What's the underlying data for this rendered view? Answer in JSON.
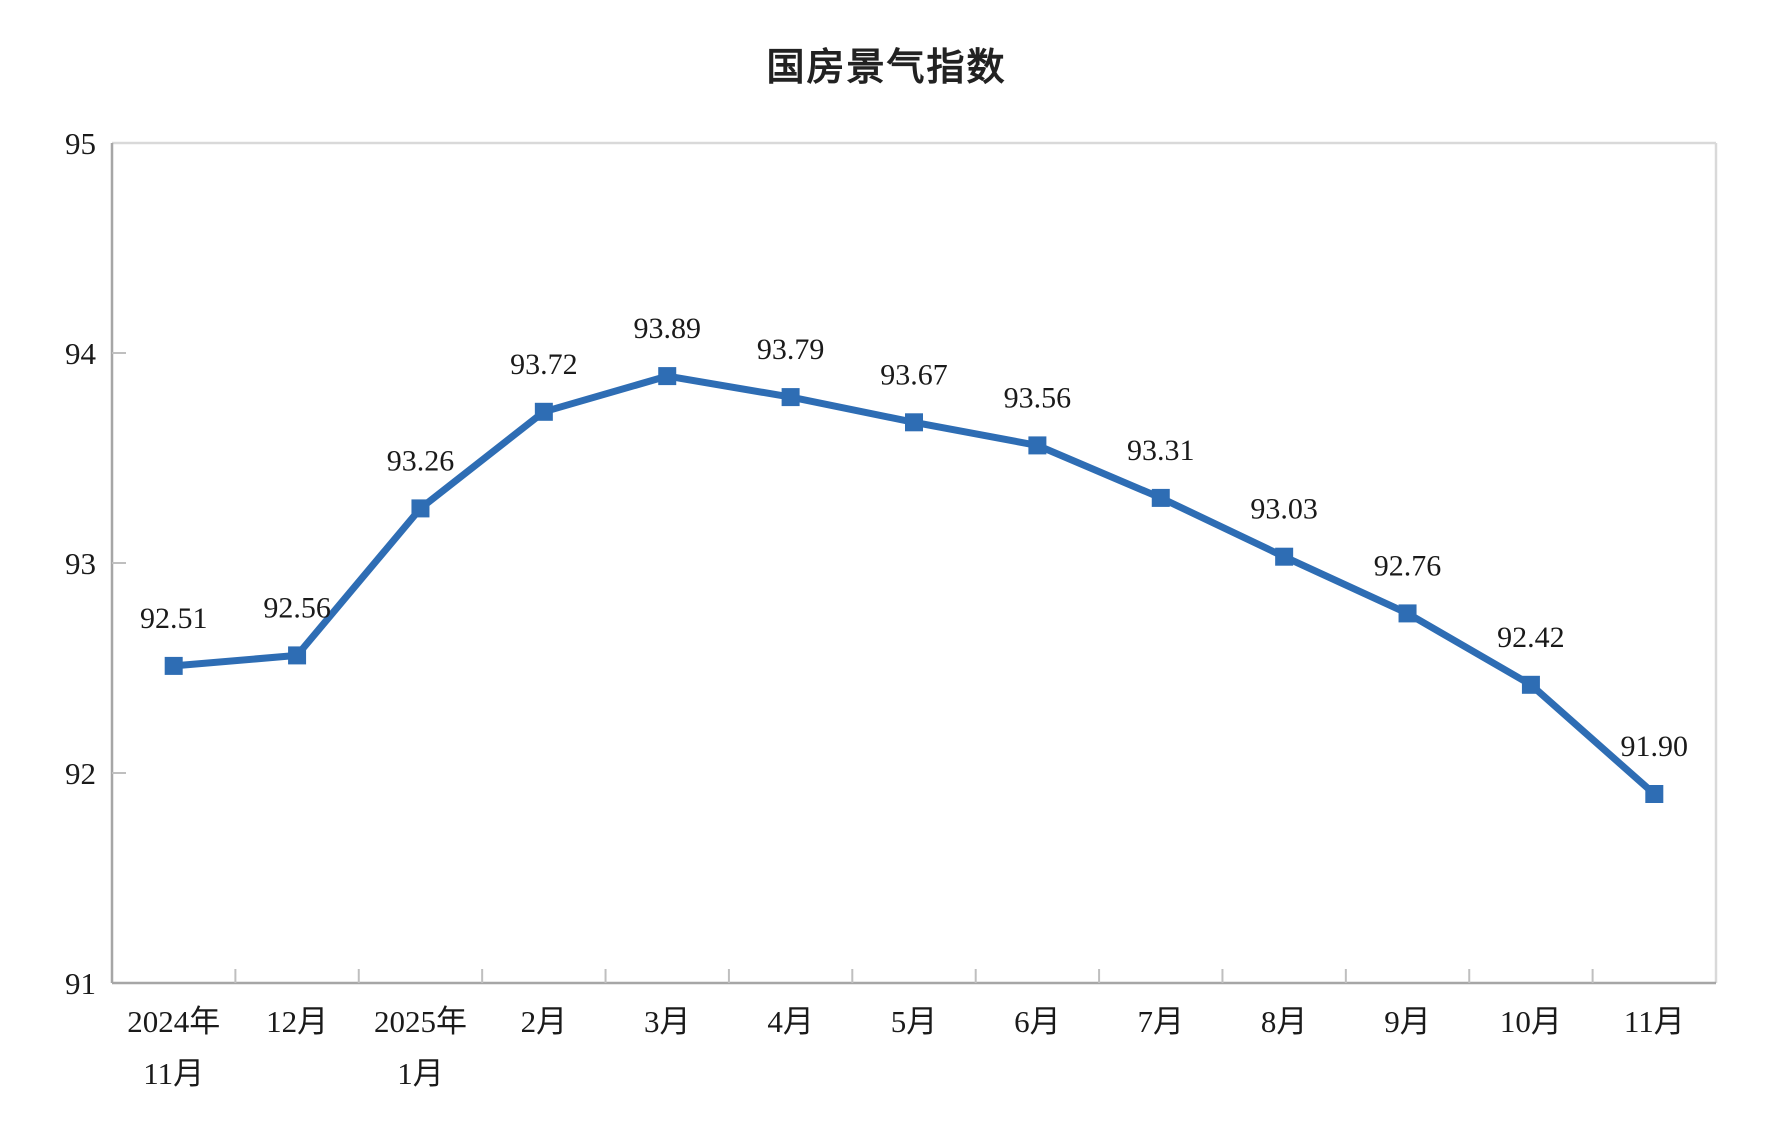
{
  "chart_data": {
    "type": "line",
    "title": "国房景气指数",
    "categories": [
      "2024年\n11月",
      "12月",
      "2025年\n1月",
      "2月",
      "3月",
      "4月",
      "5月",
      "6月",
      "7月",
      "8月",
      "9月",
      "10月",
      "11月"
    ],
    "series": [
      {
        "name": "国房景气指数",
        "values": [
          92.51,
          92.56,
          93.26,
          93.72,
          93.89,
          93.79,
          93.67,
          93.56,
          93.31,
          93.03,
          92.76,
          92.42,
          91.9
        ],
        "data_labels": [
          "92.51",
          "92.56",
          "93.26",
          "93.72",
          "93.89",
          "93.79",
          "93.67",
          "93.56",
          "93.31",
          "93.03",
          "92.76",
          "92.42",
          "91.90"
        ]
      }
    ],
    "ylim": [
      91,
      95
    ],
    "yticks": [
      "91",
      "92",
      "93",
      "94",
      "95"
    ],
    "grid": false,
    "legend_position": "none",
    "marker": "square",
    "colors": {
      "line": "#2E6DB4",
      "marker": "#2E6DB4",
      "axis": "#A6A6A6",
      "minor_tick": "#BFBFBF",
      "plot_border": "#D9D9D9",
      "text": "#1a1a1a",
      "background": "#FFFFFF"
    }
  }
}
